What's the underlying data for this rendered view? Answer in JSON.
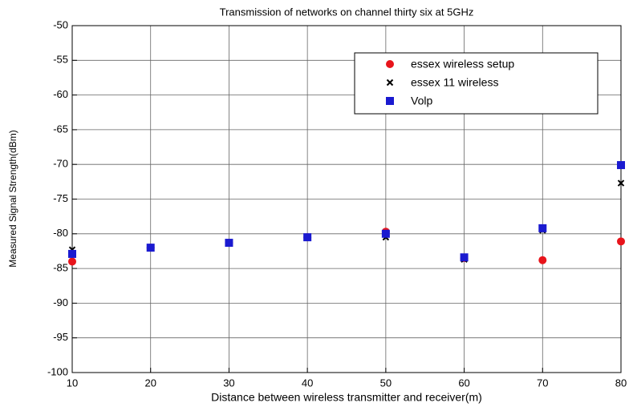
{
  "chart_data": {
    "type": "scatter",
    "title": "Transmission of networks on channel thirty six at 5GHz",
    "xlabel": "Distance between wireless transmitter and receiver(m)",
    "ylabel": "Measured Signal Strength(dBm)",
    "x": [
      10,
      20,
      30,
      40,
      50,
      60,
      70,
      80
    ],
    "series": [
      {
        "name": "essex wireless setup",
        "color": "#e8141b",
        "marker": "o",
        "values": [
          -84.0,
          -82.0,
          -81.3,
          -80.5,
          -79.7,
          -83.5,
          -83.8,
          -81.1
        ]
      },
      {
        "name": "essex 11 wireless",
        "color": "#000000",
        "marker": "x",
        "values": [
          -82.3,
          -82.0,
          -81.3,
          -80.5,
          -80.5,
          -83.7,
          -79.5,
          -72.7
        ]
      },
      {
        "name": "Volp",
        "color": "#1a1ad0",
        "marker": "s",
        "values": [
          -82.9,
          -82.0,
          -81.3,
          -80.5,
          -80.0,
          -83.4,
          -79.2,
          -70.1
        ]
      }
    ],
    "xlim": [
      10,
      80
    ],
    "xticks": [
      10,
      20,
      30,
      40,
      50,
      60,
      70,
      80
    ],
    "ylim": [
      -100,
      -50
    ],
    "yticks": [
      -50,
      -55,
      -60,
      -65,
      -70,
      -75,
      -80,
      -85,
      -90,
      -95,
      -100
    ],
    "grid": true,
    "legend": "upper right"
  }
}
